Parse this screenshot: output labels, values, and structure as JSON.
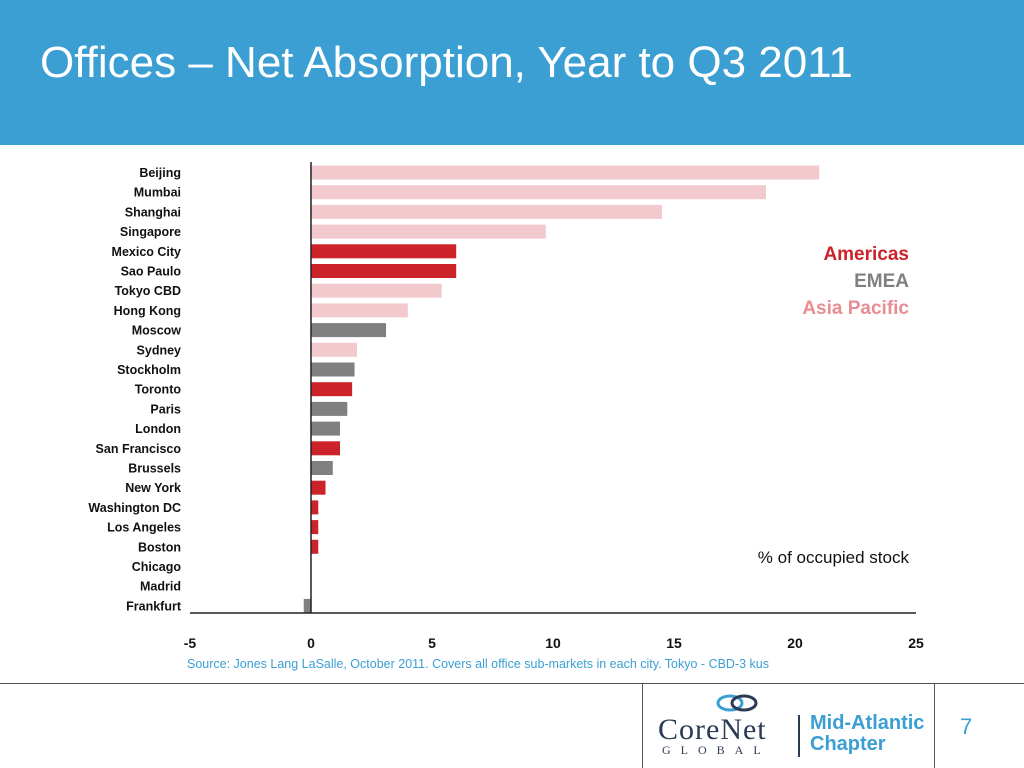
{
  "slide": {
    "title": "Offices – Net Absorption, Year to Q3 2011",
    "source": "Source: Jones Lang LaSalle, October 2011.  Covers all office sub-markets in each city. Tokyo - CBD-3 kus",
    "page_number": "7"
  },
  "logo": {
    "corenet": "CoreNet",
    "global": "GLOBAL",
    "chapter_line1": "Mid-Atlantic",
    "chapter_line2": "Chapter"
  },
  "colors": {
    "header": "#3b9fd3",
    "Americas": "#cc2229",
    "EMEA": "#808080",
    "Asia Pacific": "#f2c9cc",
    "asia_legend_text": "#e88d92"
  },
  "chart_data": {
    "type": "bar",
    "orientation": "horizontal",
    "unit_note": "% of occupied stock",
    "xlim": [
      -5,
      25
    ],
    "x_ticks": [
      "-5",
      "0",
      "5",
      "10",
      "15",
      "20",
      "25"
    ],
    "legend": [
      "Americas",
      "EMEA",
      "Asia Pacific"
    ],
    "legend_position": "top-right",
    "grid": false,
    "categories": [
      "Beijing",
      "Mumbai",
      "Shanghai",
      "Singapore",
      "Mexico City",
      "Sao Paulo",
      "Tokyo CBD",
      "Hong Kong",
      "Moscow",
      "Sydney",
      "Stockholm",
      "Toronto",
      "Paris",
      "London",
      "San Francisco",
      "Brussels",
      "New York",
      "Washington DC",
      "Los Angeles",
      "Boston",
      "Chicago",
      "Madrid",
      "Frankfurt"
    ],
    "values": [
      21.0,
      18.8,
      14.5,
      9.7,
      6.0,
      6.0,
      5.4,
      4.0,
      3.1,
      1.9,
      1.8,
      1.7,
      1.5,
      1.2,
      1.2,
      0.9,
      0.6,
      0.3,
      0.3,
      0.3,
      0.0,
      0.0,
      -0.3
    ],
    "regions": [
      "Asia Pacific",
      "Asia Pacific",
      "Asia Pacific",
      "Asia Pacific",
      "Americas",
      "Americas",
      "Asia Pacific",
      "Asia Pacific",
      "EMEA",
      "Asia Pacific",
      "EMEA",
      "Americas",
      "EMEA",
      "EMEA",
      "Americas",
      "EMEA",
      "Americas",
      "Americas",
      "Americas",
      "Americas",
      "Americas",
      "EMEA",
      "EMEA"
    ]
  }
}
